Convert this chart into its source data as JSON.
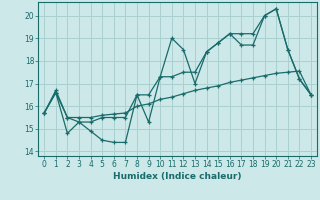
{
  "xlabel": "Humidex (Indice chaleur)",
  "bg_color": "#cce8e8",
  "grid_color": "#aad0d0",
  "line_color": "#1a6b6b",
  "xlim": [
    -0.5,
    23.5
  ],
  "ylim": [
    13.8,
    20.6
  ],
  "yticks": [
    14,
    15,
    16,
    17,
    18,
    19,
    20
  ],
  "xticks": [
    0,
    1,
    2,
    3,
    4,
    5,
    6,
    7,
    8,
    9,
    10,
    11,
    12,
    13,
    14,
    15,
    16,
    17,
    18,
    19,
    20,
    21,
    22,
    23
  ],
  "line1_x": [
    0,
    1,
    2,
    3,
    4,
    5,
    6,
    7,
    8,
    9,
    10,
    11,
    12,
    13,
    14,
    15,
    16,
    17,
    18,
    19,
    20,
    21,
    22,
    23
  ],
  "line1_y": [
    15.7,
    16.6,
    14.8,
    15.3,
    14.9,
    14.5,
    14.4,
    14.4,
    16.5,
    15.3,
    17.3,
    19.0,
    18.5,
    17.0,
    18.4,
    18.8,
    19.2,
    18.7,
    18.7,
    20.0,
    20.3,
    18.5,
    17.2,
    16.5
  ],
  "line2_x": [
    0,
    1,
    2,
    3,
    4,
    5,
    6,
    7,
    8,
    9,
    10,
    11,
    12,
    13,
    14,
    15,
    16,
    17,
    18,
    19,
    20,
    21,
    22,
    23
  ],
  "line2_y": [
    15.7,
    16.6,
    15.5,
    15.5,
    15.5,
    15.6,
    15.65,
    15.7,
    16.0,
    16.1,
    16.3,
    16.4,
    16.55,
    16.7,
    16.8,
    16.9,
    17.05,
    17.15,
    17.25,
    17.35,
    17.45,
    17.5,
    17.55,
    16.5
  ],
  "line3_x": [
    0,
    1,
    2,
    3,
    4,
    5,
    6,
    7,
    8,
    9,
    10,
    11,
    12,
    13,
    14,
    15,
    16,
    17,
    18,
    19,
    20,
    21,
    22,
    23
  ],
  "line3_y": [
    15.7,
    16.7,
    15.5,
    15.3,
    15.3,
    15.5,
    15.5,
    15.5,
    16.5,
    16.5,
    17.3,
    17.3,
    17.5,
    17.5,
    18.4,
    18.8,
    19.2,
    19.2,
    19.2,
    20.0,
    20.3,
    18.5,
    17.2,
    16.5
  ],
  "xlabel_fontsize": 6.5,
  "tick_fontsize": 5.5
}
